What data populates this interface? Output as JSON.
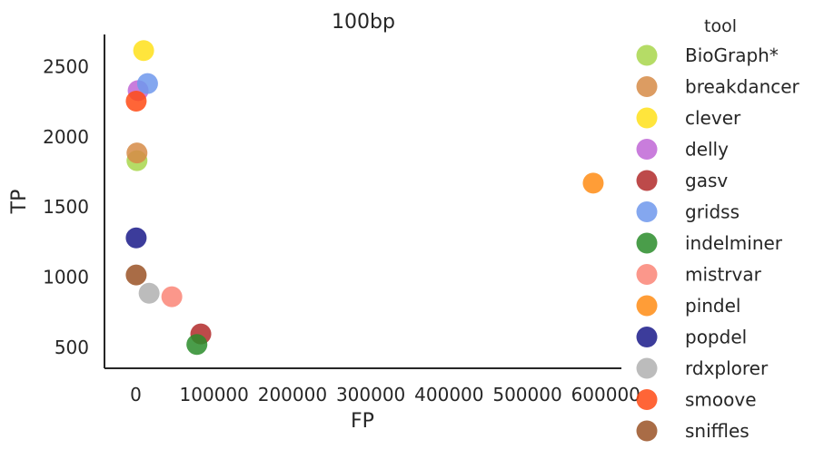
{
  "chart_data": {
    "type": "scatter",
    "title": "100bp",
    "xlabel": "FP",
    "ylabel": "TP",
    "xlim": [
      -40000,
      620000
    ],
    "ylim": [
      350,
      2730
    ],
    "xticks": [
      0,
      100000,
      200000,
      300000,
      400000,
      500000,
      600000
    ],
    "yticks": [
      500,
      1000,
      1500,
      2000,
      2500
    ],
    "grid": false,
    "legend": {
      "title": "tool",
      "placement": "outside-right"
    },
    "series": [
      {
        "name": "BioGraph*",
        "color": "#a8d64b",
        "x": [
          1500
        ],
        "y": [
          1830
        ]
      },
      {
        "name": "breakdancer",
        "color": "#d68b47",
        "x": [
          1500
        ],
        "y": [
          1885
        ]
      },
      {
        "name": "clever",
        "color": "#ffe01a",
        "x": [
          10000
        ],
        "y": [
          2615
        ]
      },
      {
        "name": "delly",
        "color": "#c066d6",
        "x": [
          3000
        ],
        "y": [
          2330
        ]
      },
      {
        "name": "gasv",
        "color": "#b22a2a",
        "x": [
          83000
        ],
        "y": [
          595
        ]
      },
      {
        "name": "gridss",
        "color": "#6f98ec",
        "x": [
          15000
        ],
        "y": [
          2380
        ]
      },
      {
        "name": "indelminer",
        "color": "#2a8c2a",
        "x": [
          78000
        ],
        "y": [
          520
        ]
      },
      {
        "name": "mistrvar",
        "color": "#fa8577",
        "x": [
          46000
        ],
        "y": [
          860
        ]
      },
      {
        "name": "pindel",
        "color": "#ff8c14",
        "x": [
          584000
        ],
        "y": [
          1670
        ]
      },
      {
        "name": "popdel",
        "color": "#1a1a8a",
        "x": [
          500
        ],
        "y": [
          1280
        ]
      },
      {
        "name": "rdxplorer",
        "color": "#b0b0b0",
        "x": [
          17000
        ],
        "y": [
          885
        ]
      },
      {
        "name": "smoove",
        "color": "#ff4a14",
        "x": [
          500
        ],
        "y": [
          2255
        ]
      },
      {
        "name": "sniffles",
        "color": "#9a5226",
        "x": [
          500
        ],
        "y": [
          1015
        ]
      }
    ]
  }
}
